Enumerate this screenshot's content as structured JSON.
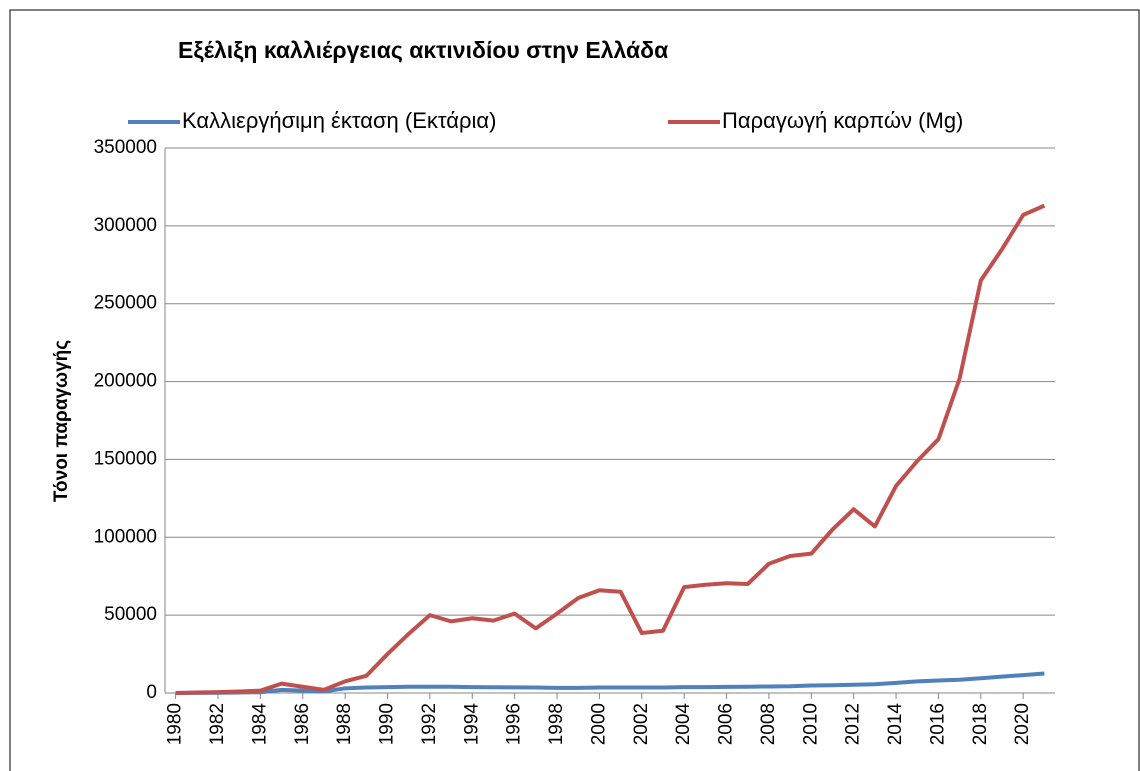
{
  "chart_data": {
    "type": "line",
    "title": "Εξέλιξη καλλιέργειας ακτινιδίου στην Ελλάδα",
    "y_label": "Τόνοι παραγωγής",
    "x": [
      1980,
      1981,
      1982,
      1983,
      1984,
      1985,
      1986,
      1987,
      1988,
      1989,
      1990,
      1991,
      1992,
      1993,
      1994,
      1995,
      1996,
      1997,
      1998,
      1999,
      2000,
      2001,
      2002,
      2003,
      2004,
      2005,
      2006,
      2007,
      2008,
      2009,
      2010,
      2011,
      2012,
      2013,
      2014,
      2015,
      2016,
      2017,
      2018,
      2019,
      2020,
      2021
    ],
    "xticks": [
      1980,
      1982,
      1984,
      1986,
      1988,
      1990,
      1992,
      1994,
      1996,
      1998,
      2000,
      2002,
      2004,
      2006,
      2008,
      2010,
      2012,
      2014,
      2016,
      2018,
      2020
    ],
    "series": [
      {
        "name": "Καλλιεργήσιμη έκταση (Εκτάρια)",
        "color": "#4f81bd",
        "values": [
          0,
          100,
          200,
          300,
          500,
          2000,
          1500,
          1000,
          3000,
          3500,
          3800,
          4000,
          4000,
          4000,
          3800,
          3700,
          3600,
          3500,
          3300,
          3300,
          3500,
          3500,
          3500,
          3500,
          3800,
          3800,
          3900,
          4000,
          4200,
          4300,
          4800,
          5000,
          5300,
          5600,
          6500,
          7500,
          8000,
          8500,
          9500,
          10500,
          11500,
          12500
        ]
      },
      {
        "name": "Παραγωγή καρπών (Mg)",
        "color": "#c0504d",
        "values": [
          0,
          300,
          600,
          1000,
          1500,
          6000,
          4000,
          2000,
          7500,
          11000,
          25000,
          38000,
          50000,
          46000,
          48000,
          46500,
          51000,
          41500,
          51000,
          61000,
          66000,
          65000,
          38500,
          40000,
          68000,
          69500,
          70500,
          70000,
          83000,
          88000,
          89500,
          105000,
          118000,
          107000,
          133000,
          149000,
          163000,
          202000,
          265000,
          285000,
          307000,
          313000
        ]
      }
    ],
    "ylim": [
      0,
      350000
    ],
    "yticks": [
      0,
      50000,
      100000,
      150000,
      200000,
      250000,
      300000,
      350000
    ],
    "grid": true,
    "legend": "top"
  }
}
